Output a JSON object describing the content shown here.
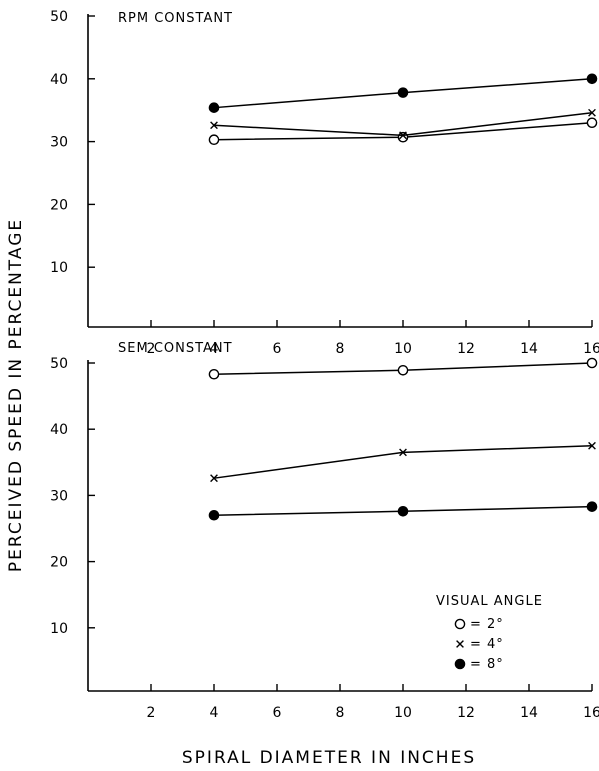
{
  "chart_data": {
    "type": "line",
    "ylabel": "PERCEIVED SPEED IN PERCENTAGE",
    "xlabel": "SPIRAL DIAMETER IN INCHES",
    "legend": {
      "title": "VISUAL ANGLE",
      "placement": "bottom-right of lower panel",
      "entries": [
        {
          "marker": "open-circle",
          "label": "= 2°"
        },
        {
          "marker": "cross",
          "label": "= 4°"
        },
        {
          "marker": "filled-circle",
          "label": "= 8°"
        }
      ]
    },
    "x_ticks": [
      2,
      4,
      6,
      8,
      10,
      12,
      14,
      16
    ],
    "xlim": [
      0,
      16
    ],
    "panels": [
      {
        "title": "RPM CONSTANT",
        "ylim": [
          0,
          50
        ],
        "y_ticks": [
          10,
          20,
          30,
          40,
          50
        ],
        "x": [
          4,
          10,
          16
        ],
        "series": [
          {
            "marker": "open-circle",
            "values": [
              30.3,
              30.7,
              33.0
            ]
          },
          {
            "marker": "cross",
            "values": [
              32.6,
              31.0,
              34.6
            ]
          },
          {
            "marker": "filled-circle",
            "values": [
              35.4,
              37.8,
              40.0
            ]
          }
        ]
      },
      {
        "title": "SEM CONSTANT",
        "ylim": [
          0,
          50
        ],
        "y_ticks": [
          10,
          20,
          30,
          40,
          50
        ],
        "x": [
          4,
          10,
          16
        ],
        "series": [
          {
            "marker": "open-circle",
            "values": [
              48.3,
              48.9,
              50.0
            ]
          },
          {
            "marker": "cross",
            "values": [
              32.6,
              36.5,
              37.5
            ]
          },
          {
            "marker": "filled-circle",
            "values": [
              27.0,
              27.6,
              28.3
            ]
          }
        ]
      }
    ]
  }
}
